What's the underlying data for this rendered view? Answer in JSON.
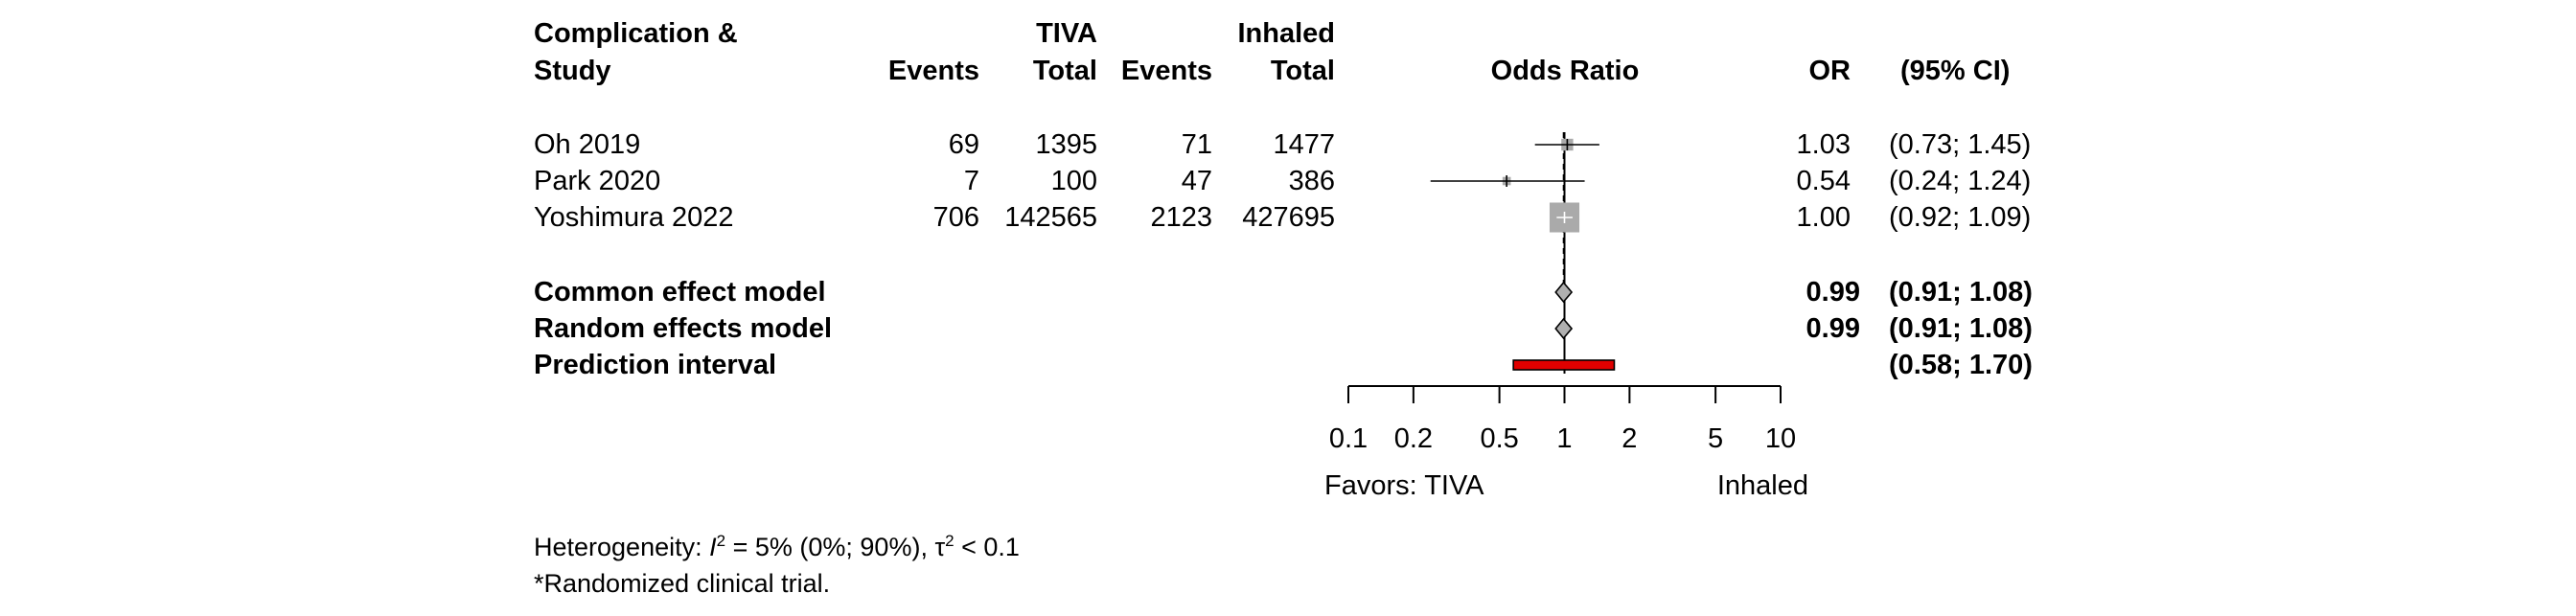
{
  "chart_data": {
    "type": "forest",
    "scale": "log",
    "null_value": 1,
    "header": {
      "study_col_line1": "Complication &",
      "study_col_line2": "Study",
      "tiva_group": "TIVA",
      "inhaled_group": "Inhaled",
      "events_label": "Events",
      "total_label": "Total",
      "effect_label": "Odds Ratio",
      "or_label": "OR",
      "ci_label": "(95% CI)"
    },
    "studies": [
      {
        "name": "Oh 2019",
        "tiva_events": "69",
        "tiva_total": "1395",
        "inhaled_events": "71",
        "inhaled_total": "1477",
        "or": 1.03,
        "lower": 0.73,
        "upper": 1.45,
        "or_text": "1.03",
        "ci_text": "(0.73; 1.45)",
        "weight": 0.06
      },
      {
        "name": "Park 2020",
        "tiva_events": "7",
        "tiva_total": "100",
        "inhaled_events": "47",
        "inhaled_total": "386",
        "or": 0.54,
        "lower": 0.24,
        "upper": 1.24,
        "or_text": "0.54",
        "ci_text": "(0.24; 1.24)",
        "weight": 0.01
      },
      {
        "name": "Yoshimura 2022",
        "tiva_events": "706",
        "tiva_total": "142565",
        "inhaled_events": "2123",
        "inhaled_total": "427695",
        "or": 1.0,
        "lower": 0.92,
        "upper": 1.09,
        "or_text": "1.00",
        "ci_text": "(0.92; 1.09)",
        "weight": 0.93
      }
    ],
    "summaries": [
      {
        "name": "Common effect model",
        "or": 0.99,
        "lower": 0.91,
        "upper": 1.08,
        "or_text": "0.99",
        "ci_text": "(0.91; 1.08)"
      },
      {
        "name": "Random effects model",
        "or": 0.99,
        "lower": 0.91,
        "upper": 1.08,
        "or_text": "0.99",
        "ci_text": "(0.91; 1.08)"
      }
    ],
    "prediction": {
      "name": "Prediction interval",
      "lower": 0.58,
      "upper": 1.7,
      "ci_text": "(0.58; 1.70)"
    },
    "x_ticks": [
      {
        "value": 0.1,
        "label": "0.1"
      },
      {
        "value": 0.2,
        "label": "0.2"
      },
      {
        "value": 0.5,
        "label": "0.5"
      },
      {
        "value": 1,
        "label": "1"
      },
      {
        "value": 2,
        "label": "2"
      },
      {
        "value": 5,
        "label": "5"
      },
      {
        "value": 10,
        "label": "10"
      }
    ],
    "xlim": [
      0.1,
      10
    ],
    "favors_left": "Favors: TIVA",
    "favors_right": "Inhaled",
    "colors": {
      "study_box": "#aaaaaa",
      "diamond": "#b0b0b0",
      "prediction": "#e00000",
      "line": "#000000"
    }
  },
  "footer": {
    "heterogeneity_prefix": "Heterogeneity: ",
    "i2_symbol": "I",
    "i2_exponent": "2",
    "i2_value": " = 5% (0%; 90%), ",
    "tau_symbol": "τ",
    "tau_exponent": "2",
    "tau_value": " < 0.1",
    "note": "*Randomized clinical trial."
  }
}
